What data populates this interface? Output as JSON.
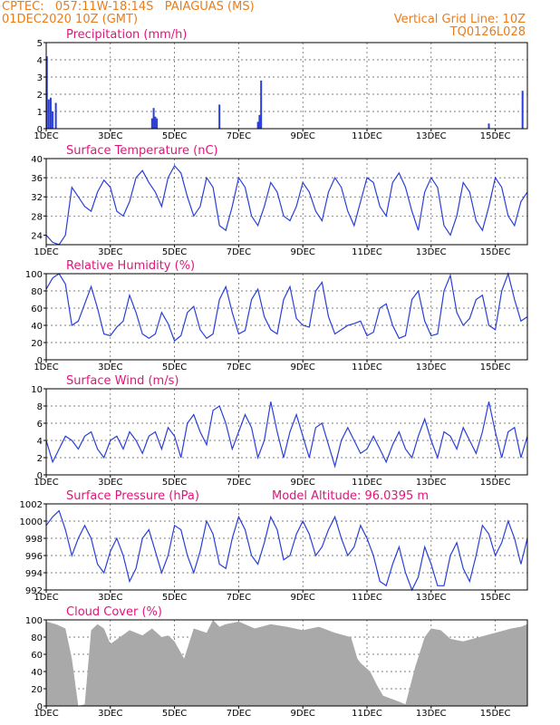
{
  "header": {
    "line1": "CPTEC:   057:11W-18:14S   PAIAGUAS (MS)",
    "line2": "01DEC2020 10Z (GMT)",
    "right1": "Vertical Grid Line: 10Z",
    "right2": "TQ0126L028"
  },
  "colors": {
    "header": "#e87d1e",
    "title": "#e0157a",
    "line": "#2a3fd8",
    "cloud": "#a9a9a9"
  },
  "x_ticks": [
    "1DEC",
    "3DEC",
    "5DEC",
    "7DEC",
    "9DEC",
    "11DEC",
    "13DEC",
    "15DEC"
  ],
  "chart_data": [
    {
      "type": "bar",
      "title": "Precipitation (mm/h)",
      "ylim": [
        0,
        5
      ],
      "yticks": [
        0,
        1,
        2,
        3,
        4,
        5
      ],
      "x_unit": "days since 01DEC 10Z",
      "points": [
        [
          0.02,
          4.2
        ],
        [
          0.08,
          1.7
        ],
        [
          0.14,
          1.8
        ],
        [
          0.2,
          1.0
        ],
        [
          0.3,
          1.5
        ],
        [
          3.3,
          0.6
        ],
        [
          3.35,
          1.2
        ],
        [
          3.4,
          0.7
        ],
        [
          3.45,
          0.6
        ],
        [
          5.4,
          1.4
        ],
        [
          6.6,
          0.4
        ],
        [
          6.65,
          0.8
        ],
        [
          6.7,
          2.8
        ],
        [
          13.8,
          0.3
        ],
        [
          14.85,
          2.2
        ]
      ]
    },
    {
      "type": "line",
      "title": "Surface Temperature (nC)",
      "ylim": [
        22,
        40
      ],
      "yticks": [
        24,
        28,
        32,
        36,
        40
      ],
      "x": [
        0,
        0.2,
        0.4,
        0.6,
        0.8,
        1.0,
        1.2,
        1.4,
        1.6,
        1.8,
        2.0,
        2.2,
        2.4,
        2.6,
        2.8,
        3.0,
        3.2,
        3.4,
        3.6,
        3.8,
        4.0,
        4.2,
        4.4,
        4.6,
        4.8,
        5.0,
        5.2,
        5.4,
        5.6,
        5.8,
        6.0,
        6.2,
        6.4,
        6.6,
        6.8,
        7.0,
        7.2,
        7.4,
        7.6,
        7.8,
        8.0,
        8.2,
        8.4,
        8.6,
        8.8,
        9.0,
        9.2,
        9.4,
        9.6,
        9.8,
        10.0,
        10.2,
        10.4,
        10.6,
        10.8,
        11.0,
        11.2,
        11.4,
        11.6,
        11.8,
        12.0,
        12.2,
        12.4,
        12.6,
        12.8,
        13.0,
        13.2,
        13.4,
        13.6,
        13.8,
        14.0,
        14.2,
        14.4,
        14.6,
        14.8,
        15.0
      ],
      "y": [
        24,
        22.5,
        22,
        24,
        34,
        32,
        30,
        29,
        33,
        35.5,
        34,
        29,
        28,
        31,
        36,
        37.5,
        35,
        33,
        30,
        36,
        38.5,
        37,
        32,
        28,
        30,
        36,
        34,
        26,
        25,
        30,
        36,
        34,
        28,
        26,
        30,
        35,
        33,
        28,
        27,
        30,
        35,
        33,
        29,
        27,
        33,
        36,
        34,
        29,
        26,
        31,
        36,
        35,
        30,
        28,
        35,
        37,
        34,
        29,
        25,
        33,
        36,
        34,
        26,
        24,
        28,
        35,
        33,
        27,
        25,
        30,
        36,
        34,
        28,
        26,
        31,
        33
      ]
    },
    {
      "type": "line",
      "title": "Relative Humidity (%)",
      "ylim": [
        0,
        100
      ],
      "yticks": [
        0,
        20,
        40,
        60,
        80,
        100
      ],
      "x": [
        0,
        0.2,
        0.4,
        0.6,
        0.8,
        1.0,
        1.2,
        1.4,
        1.6,
        1.8,
        2.0,
        2.2,
        2.4,
        2.6,
        2.8,
        3.0,
        3.2,
        3.4,
        3.6,
        3.8,
        4.0,
        4.2,
        4.4,
        4.6,
        4.8,
        5.0,
        5.2,
        5.4,
        5.6,
        5.8,
        6.0,
        6.2,
        6.4,
        6.6,
        6.8,
        7.0,
        7.2,
        7.4,
        7.6,
        7.8,
        8.0,
        8.2,
        8.4,
        8.6,
        8.8,
        9.0,
        9.2,
        9.4,
        9.6,
        9.8,
        10.0,
        10.2,
        10.4,
        10.6,
        10.8,
        11.0,
        11.2,
        11.4,
        11.6,
        11.8,
        12.0,
        12.2,
        12.4,
        12.6,
        12.8,
        13.0,
        13.2,
        13.4,
        13.6,
        13.8,
        14.0,
        14.2,
        14.4,
        14.6,
        14.8,
        15.0
      ],
      "y": [
        82,
        95,
        100,
        88,
        40,
        45,
        65,
        85,
        60,
        30,
        28,
        38,
        45,
        75,
        55,
        30,
        25,
        30,
        55,
        42,
        22,
        28,
        55,
        62,
        35,
        25,
        30,
        70,
        85,
        55,
        30,
        34,
        70,
        82,
        50,
        35,
        30,
        70,
        85,
        48,
        40,
        38,
        80,
        90,
        50,
        30,
        35,
        40,
        42,
        45,
        28,
        32,
        60,
        65,
        40,
        25,
        28,
        70,
        80,
        45,
        28,
        30,
        80,
        98,
        55,
        40,
        48,
        70,
        75,
        40,
        35,
        80,
        100,
        70,
        45,
        50
      ]
    },
    {
      "type": "line",
      "title": "Surface Wind (m/s)",
      "ylim": [
        0,
        10
      ],
      "yticks": [
        0,
        2,
        4,
        6,
        8,
        10
      ],
      "x": [
        0,
        0.2,
        0.4,
        0.6,
        0.8,
        1.0,
        1.2,
        1.4,
        1.6,
        1.8,
        2.0,
        2.2,
        2.4,
        2.6,
        2.8,
        3.0,
        3.2,
        3.4,
        3.6,
        3.8,
        4.0,
        4.2,
        4.4,
        4.6,
        4.8,
        5.0,
        5.2,
        5.4,
        5.6,
        5.8,
        6.0,
        6.2,
        6.4,
        6.6,
        6.8,
        7.0,
        7.2,
        7.4,
        7.6,
        7.8,
        8.0,
        8.2,
        8.4,
        8.6,
        8.8,
        9.0,
        9.2,
        9.4,
        9.6,
        9.8,
        10.0,
        10.2,
        10.4,
        10.6,
        10.8,
        11.0,
        11.2,
        11.4,
        11.6,
        11.8,
        12.0,
        12.2,
        12.4,
        12.6,
        12.8,
        13.0,
        13.2,
        13.4,
        13.6,
        13.8,
        14.0,
        14.2,
        14.4,
        14.6,
        14.8,
        15.0
      ],
      "y": [
        4,
        1.5,
        3,
        4.5,
        4,
        3,
        4.5,
        5,
        3,
        2,
        4,
        4.5,
        3,
        5,
        4,
        2.5,
        4.5,
        5,
        3,
        5.5,
        4.5,
        2,
        6,
        7,
        5,
        3.5,
        7.5,
        8,
        6,
        3,
        5,
        7,
        5.5,
        2,
        4,
        8.5,
        5,
        2,
        5,
        7,
        4.5,
        2,
        5.5,
        6,
        3.5,
        1,
        4,
        5.5,
        4,
        2.5,
        3,
        4.5,
        3,
        1.5,
        3.5,
        5,
        3,
        2,
        4.5,
        6.5,
        4,
        2,
        5,
        4.5,
        3,
        5.5,
        4,
        2.5,
        5,
        8.5,
        5,
        2,
        5,
        5.5,
        2,
        4.5
      ]
    },
    {
      "type": "line",
      "title": "Surface Pressure (hPa)",
      "annotation": "Model Altitude: 96.0395 m",
      "ylim": [
        992,
        1002
      ],
      "yticks": [
        992,
        994,
        996,
        998,
        1000,
        1002
      ],
      "x": [
        0,
        0.2,
        0.4,
        0.6,
        0.8,
        1.0,
        1.2,
        1.4,
        1.6,
        1.8,
        2.0,
        2.2,
        2.4,
        2.6,
        2.8,
        3.0,
        3.2,
        3.4,
        3.6,
        3.8,
        4.0,
        4.2,
        4.4,
        4.6,
        4.8,
        5.0,
        5.2,
        5.4,
        5.6,
        5.8,
        6.0,
        6.2,
        6.4,
        6.6,
        6.8,
        7.0,
        7.2,
        7.4,
        7.6,
        7.8,
        8.0,
        8.2,
        8.4,
        8.6,
        8.8,
        9.0,
        9.2,
        9.4,
        9.6,
        9.8,
        10.0,
        10.2,
        10.4,
        10.6,
        10.8,
        11.0,
        11.2,
        11.4,
        11.6,
        11.8,
        12.0,
        12.2,
        12.4,
        12.6,
        12.8,
        13.0,
        13.2,
        13.4,
        13.6,
        13.8,
        14.0,
        14.2,
        14.4,
        14.6,
        14.8,
        15.0
      ],
      "y": [
        999.5,
        1000.5,
        1001.2,
        999,
        996,
        998,
        999.5,
        998,
        995,
        994,
        996.5,
        998,
        996,
        993,
        994.5,
        998,
        999,
        996.5,
        994,
        996,
        999.5,
        999,
        996,
        994,
        996.5,
        1000,
        998.5,
        995,
        994.5,
        998,
        1000.5,
        999,
        996,
        995,
        997.5,
        1000.5,
        999,
        995.5,
        996,
        998.5,
        1000,
        998.5,
        996,
        997,
        999,
        1000.5,
        998,
        996,
        997,
        999.5,
        998,
        996,
        993,
        992.5,
        995,
        997,
        994,
        992,
        993.5,
        997,
        995,
        992.5,
        992.5,
        996,
        997.5,
        994.5,
        993,
        996,
        999.5,
        998.5,
        996,
        997.5,
        1000,
        998,
        995,
        998
      ]
    },
    {
      "type": "area",
      "title": "Cloud Cover (%)",
      "ylim": [
        0,
        100
      ],
      "yticks": [
        0,
        20,
        40,
        60,
        80,
        100
      ],
      "x": [
        0,
        0.3,
        0.6,
        0.8,
        1.0,
        1.2,
        1.4,
        1.6,
        1.8,
        2.0,
        2.3,
        2.6,
        3.0,
        3.3,
        3.6,
        3.8,
        4.0,
        4.3,
        4.6,
        5.0,
        5.2,
        5.4,
        5.6,
        6.0,
        6.5,
        7.0,
        7.5,
        8.0,
        8.5,
        9.0,
        9.5,
        9.7,
        9.8,
        10.1,
        10.3,
        10.5,
        11.0,
        11.2,
        11.5,
        11.8,
        12.0,
        12.3,
        12.6,
        13.0,
        13.5,
        14.0,
        14.5,
        14.8,
        15.0
      ],
      "y": [
        98,
        95,
        90,
        55,
        0,
        2,
        88,
        95,
        90,
        72,
        80,
        88,
        82,
        90,
        80,
        82,
        75,
        55,
        90,
        85,
        100,
        92,
        95,
        98,
        90,
        95,
        92,
        88,
        92,
        85,
        80,
        55,
        50,
        40,
        25,
        12,
        5,
        2,
        45,
        80,
        90,
        88,
        78,
        75,
        80,
        85,
        90,
        92,
        95
      ]
    }
  ]
}
